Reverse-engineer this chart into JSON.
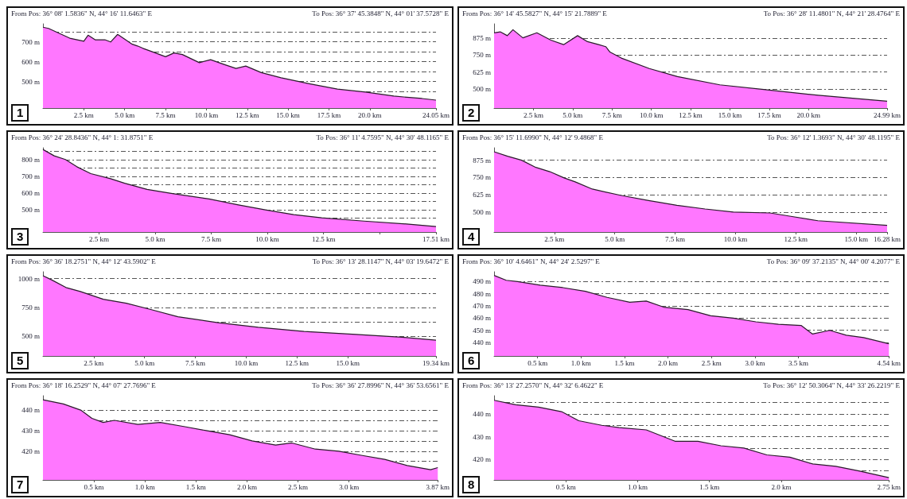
{
  "chart_data": [
    {
      "type": "area",
      "annotations": [
        "From Pos: 36° 08' 1.5836\" N, 44° 16' 11.6463\" E",
        "To Pos: 36° 37' 45.3848\" N, 44° 01' 37.5728\" E",
        "1"
      ],
      "x": [
        0,
        0.34,
        1.64,
        2.5,
        2.76,
        3.19,
        3.79,
        4.14,
        4.57,
        4.91,
        5.43,
        5.78,
        6.12,
        6.72,
        7.5,
        8.02,
        8.53,
        9.57,
        10.26,
        11.12,
        11.81,
        12.41,
        13.36,
        14.57,
        16.29,
        18.02,
        19.74,
        21.47,
        23.19,
        24.05
      ],
      "series": [
        {
          "color": "#ff77ff",
          "values": [
            773,
            767,
            718,
            703,
            733,
            710,
            710,
            699,
            737,
            718,
            689,
            679,
            667,
            649,
            625,
            644,
            636,
            595,
            610,
            585,
            566,
            578,
            545,
            519,
            489,
            462,
            447,
            427,
            415,
            407
          ]
        }
      ],
      "xlim": [
        0,
        24.05
      ],
      "xticks": [
        {
          "value": 2.5,
          "label": "2.5 km"
        },
        {
          "value": 5,
          "label": "5.0 km"
        },
        {
          "value": 7.5,
          "label": "7.5 km"
        },
        {
          "value": 10,
          "label": "10.0 km"
        },
        {
          "value": 12.5,
          "label": "12.5 km"
        },
        {
          "value": 15,
          "label": "15.0 km"
        },
        {
          "value": 17.5,
          "label": "17.5 km"
        },
        {
          "value": 20,
          "label": "20.0 km"
        },
        {
          "value": 24.05,
          "label": "24.05 km"
        }
      ],
      "ylim": [
        367,
        790
      ],
      "yticks": [
        {
          "value": 450,
          "label": null
        },
        {
          "value": 500,
          "label": "500 m"
        },
        {
          "value": 550,
          "label": null
        },
        {
          "value": 600,
          "label": "600 m"
        },
        {
          "value": 650,
          "label": null
        },
        {
          "value": 700,
          "label": "700 m"
        },
        {
          "value": 750,
          "label": null
        }
      ],
      "grid": "y"
    },
    {
      "type": "area",
      "annotations": [
        "From Pos: 36° 14' 45.5827\" N, 44° 15' 21.7889\" E",
        "To Pos: 36° 28' 11.4801\" N, 44° 21' 28.4764\" E",
        "2"
      ],
      "x": [
        0,
        0.39,
        0.84,
        1.2,
        1.83,
        2.72,
        3.61,
        4.42,
        5.31,
        5.94,
        6.65,
        7.1,
        7.37,
        8.09,
        9.87,
        11.66,
        14.35,
        17.03,
        20.61,
        24.99
      ],
      "series": [
        {
          "color": "#ff77ff",
          "values": [
            914,
            921,
            893,
            937,
            877,
            914,
            860,
            827,
            893,
            849,
            827,
            812,
            772,
            728,
            651,
            592,
            531,
            498,
            454,
            410
          ]
        }
      ],
      "xlim": [
        0,
        24.99
      ],
      "xticks": [
        {
          "value": 2.5,
          "label": "2.5 km"
        },
        {
          "value": 5,
          "label": "5.0 km"
        },
        {
          "value": 7.5,
          "label": "7.5 km"
        },
        {
          "value": 10,
          "label": "10.0 km"
        },
        {
          "value": 12.5,
          "label": "12.5 km"
        },
        {
          "value": 15,
          "label": "15.0 km"
        },
        {
          "value": 17.5,
          "label": "17.5 km"
        },
        {
          "value": 20,
          "label": "20.0 km"
        },
        {
          "value": 24.99,
          "label": "24.99 km"
        }
      ],
      "ylim": [
        360,
        980
      ],
      "yticks": [
        {
          "value": 500,
          "label": "500 m"
        },
        {
          "value": 625,
          "label": "625 m"
        },
        {
          "value": 750,
          "label": "750 m"
        },
        {
          "value": 875,
          "label": "875 m"
        }
      ],
      "grid": "y"
    },
    {
      "type": "area",
      "annotations": [
        "From Pos: 36° 24' 28.8436\" N, 44° 1: 31.8751\" E",
        "To Pos: 36° 11' 4.7595\" N, 44° 30' 48.1165\" E",
        "3"
      ],
      "x": [
        0,
        0.5,
        1.0,
        1.51,
        2.13,
        3.01,
        3.64,
        4.64,
        5.77,
        7.4,
        8.66,
        9.91,
        11.17,
        12.42,
        14.3,
        16.19,
        17.51
      ],
      "series": [
        {
          "color": "#ff77ff",
          "values": [
            860,
            822,
            800,
            757,
            716,
            686,
            659,
            622,
            597,
            565,
            531,
            500,
            472,
            453,
            433,
            416,
            401
          ]
        }
      ],
      "xlim": [
        0,
        17.51
      ],
      "xticks": [
        {
          "value": 2.5,
          "label": "2.5 km"
        },
        {
          "value": 5,
          "label": "5.0 km"
        },
        {
          "value": 7.5,
          "label": "7.5 km"
        },
        {
          "value": 10,
          "label": "10.0 km"
        },
        {
          "value": 12.5,
          "label": "12.5 km"
        },
        {
          "value": 15,
          "label": null
        },
        {
          "value": 17.51,
          "label": "17.51 km"
        }
      ],
      "ylim": [
        368,
        870
      ],
      "yticks": [
        {
          "value": 450,
          "label": null
        },
        {
          "value": 500,
          "label": "500 m"
        },
        {
          "value": 550,
          "label": null
        },
        {
          "value": 600,
          "label": "600 m"
        },
        {
          "value": 650,
          "label": null
        },
        {
          "value": 700,
          "label": "700 m"
        },
        {
          "value": 750,
          "label": null
        },
        {
          "value": 800,
          "label": "800 m"
        },
        {
          "value": 850,
          "label": null
        }
      ],
      "grid": "y"
    },
    {
      "type": "area",
      "annotations": [
        "From Pos: 36° 15' 11.6990\" N, 44° 12' 9.4868\" E",
        "To Pos: 36° 12' 1.3693\" N, 44° 30' 48.1195\" E",
        "4"
      ],
      "x": [
        0,
        0.56,
        1.14,
        1.73,
        2.31,
        2.9,
        3.36,
        4.07,
        5.23,
        6.4,
        7.57,
        8.74,
        9.91,
        11.43,
        12.24,
        13.41,
        16.28
      ],
      "series": [
        {
          "color": "#ff77ff",
          "values": [
            936,
            904,
            875,
            823,
            792,
            747,
            718,
            666,
            621,
            583,
            549,
            522,
            500,
            493,
            470,
            437,
            403
          ]
        }
      ],
      "xlim": [
        0,
        16.28
      ],
      "xticks": [
        {
          "value": 2.5,
          "label": "2.5 km"
        },
        {
          "value": 5,
          "label": "5.0 km"
        },
        {
          "value": 7.5,
          "label": "7.5 km"
        },
        {
          "value": 10,
          "label": "10.0 km"
        },
        {
          "value": 12.5,
          "label": "12.5 km"
        },
        {
          "value": 15,
          "label": "15.0 km"
        },
        {
          "value": 16.28,
          "label": "16.28 km"
        }
      ],
      "ylim": [
        355,
        965
      ],
      "yticks": [
        {
          "value": 500,
          "label": "500 m"
        },
        {
          "value": 625,
          "label": "625 m"
        },
        {
          "value": 750,
          "label": "750 m"
        },
        {
          "value": 875,
          "label": "875 m"
        }
      ],
      "grid": "y"
    },
    {
      "type": "area",
      "annotations": [
        "From Pos: 36° 36' 18.2751\" N, 44° 12' 43.5902\" E",
        "To Pos: 36° 13' 28.1147\" N, 44° 03' 19.6472\" E",
        "5"
      ],
      "x": [
        0,
        0.42,
        1.13,
        1.84,
        2.97,
        4.1,
        5.23,
        6.64,
        8.62,
        10.59,
        12.85,
        15.4,
        17.66,
        19.34
      ],
      "series": [
        {
          "color": "#ff77ff",
          "values": [
            1026,
            990,
            923,
            888,
            821,
            786,
            735,
            668,
            617,
            577,
            541,
            515,
            490,
            464
          ]
        }
      ],
      "xlim": [
        0,
        19.34
      ],
      "xticks": [
        {
          "value": 2.5,
          "label": "2.5 km"
        },
        {
          "value": 5,
          "label": "5.0 km"
        },
        {
          "value": 7.5,
          "label": "7.5 km"
        },
        {
          "value": 10,
          "label": "10.0 km"
        },
        {
          "value": 12.5,
          "label": "12.5 km"
        },
        {
          "value": 15,
          "label": "15.0 km"
        },
        {
          "value": 19.34,
          "label": "19.34 km"
        }
      ],
      "ylim": [
        327,
        1060
      ],
      "yticks": [
        {
          "value": 500,
          "label": "500 m"
        },
        {
          "value": 625,
          "label": null
        },
        {
          "value": 750,
          "label": "750 m"
        },
        {
          "value": 875,
          "label": null
        },
        {
          "value": 1000,
          "label": "1000 m"
        }
      ],
      "grid": "y"
    },
    {
      "type": "area",
      "annotations": [
        "From Pos: 36° 10' 4.6461\" N, 44° 24' 2.5297\" E",
        "To Pos: 36° 09' 37.2135\" N, 44° 00' 4.2077\" E",
        "6"
      ],
      "x": [
        0,
        0.14,
        0.27,
        0.53,
        0.79,
        1.05,
        1.3,
        1.56,
        1.75,
        1.95,
        2.23,
        2.49,
        2.75,
        3.01,
        3.27,
        3.53,
        3.66,
        3.86,
        4.05,
        4.25,
        4.54
      ],
      "series": [
        {
          "color": "#ff77ff",
          "values": [
            495,
            491,
            490,
            487,
            485,
            482,
            477,
            473,
            474,
            469,
            467,
            462,
            460,
            457,
            455,
            454,
            447,
            450,
            446,
            444,
            439
          ]
        }
      ],
      "xlim": [
        0,
        4.54
      ],
      "xticks": [
        {
          "value": 0.5,
          "label": "0.5 km"
        },
        {
          "value": 1,
          "label": "1.0 km"
        },
        {
          "value": 1.5,
          "label": "1.5 km"
        },
        {
          "value": 2,
          "label": "2.0 km"
        },
        {
          "value": 2.5,
          "label": "2.5 km"
        },
        {
          "value": 3,
          "label": "3.0 km"
        },
        {
          "value": 3.5,
          "label": "3.5 km"
        },
        {
          "value": 4.54,
          "label": "4.54 km"
        }
      ],
      "ylim": [
        429,
        498
      ],
      "yticks": [
        {
          "value": 440,
          "label": "440 m"
        },
        {
          "value": 450,
          "label": "450 m"
        },
        {
          "value": 460,
          "label": "460 m"
        },
        {
          "value": 470,
          "label": "470 m"
        },
        {
          "value": 480,
          "label": "480 m"
        },
        {
          "value": 490,
          "label": "490 m"
        }
      ],
      "grid": "y"
    },
    {
      "type": "area",
      "annotations": [
        "From Pos: 36° 18' 16.2529\" N, 44° 07' 27.7696\" E",
        "To Pos: 36° 36' 27.8996\" N, 44° 36' 53.6561\" E",
        "7"
      ],
      "x": [
        0,
        0.2,
        0.37,
        0.48,
        0.59,
        0.7,
        0.93,
        1.15,
        1.38,
        1.6,
        1.83,
        2.05,
        2.28,
        2.44,
        2.67,
        2.9,
        3.12,
        3.35,
        3.57,
        3.8,
        3.87
      ],
      "series": [
        {
          "color": "#ff77ff",
          "values": [
            445,
            443,
            440,
            436,
            434,
            435,
            433,
            434,
            432,
            430,
            428,
            425,
            423,
            424,
            421,
            420,
            418,
            416,
            413,
            411,
            412
          ]
        }
      ],
      "xlim": [
        0,
        3.87
      ],
      "xticks": [
        {
          "value": 0.5,
          "label": "0.5 km"
        },
        {
          "value": 1,
          "label": "1.0 km"
        },
        {
          "value": 1.5,
          "label": "1.5 km"
        },
        {
          "value": 2,
          "label": "2.0 km"
        },
        {
          "value": 2.5,
          "label": "2.5 km"
        },
        {
          "value": 3,
          "label": "3.0 km"
        },
        {
          "value": 3.87,
          "label": "3.87 km"
        }
      ],
      "ylim": [
        406,
        447
      ],
      "yticks": [
        {
          "value": 415,
          "label": null
        },
        {
          "value": 420,
          "label": "420 m"
        },
        {
          "value": 425,
          "label": null
        },
        {
          "value": 430,
          "label": "430 m"
        },
        {
          "value": 435,
          "label": null
        },
        {
          "value": 440,
          "label": "440 m"
        }
      ],
      "grid": "y"
    },
    {
      "type": "area",
      "annotations": [
        "From Pos: 36° 13' 27.2570\" N, 44° 32' 6.4622\" E",
        "To Pos: 36° 12' 50.3064\" N, 44° 33' 26.2219\" E",
        "8"
      ],
      "x": [
        0,
        0.15,
        0.31,
        0.47,
        0.59,
        0.75,
        0.87,
        1.06,
        1.26,
        1.42,
        1.58,
        1.74,
        1.9,
        2.06,
        2.22,
        2.38,
        2.54,
        2.75
      ],
      "series": [
        {
          "color": "#ff77ff",
          "values": [
            446,
            444,
            443,
            441,
            437,
            435,
            434,
            433,
            428,
            428,
            426,
            425,
            422,
            421,
            418,
            417,
            415,
            412
          ]
        }
      ],
      "xlim": [
        0,
        2.75
      ],
      "xticks": [
        {
          "value": 0.5,
          "label": "0.5 km"
        },
        {
          "value": 1,
          "label": "1.0 km"
        },
        {
          "value": 1.5,
          "label": "1.5 km"
        },
        {
          "value": 2,
          "label": "2.0 km"
        },
        {
          "value": 2.75,
          "label": "2.75 km"
        }
      ],
      "ylim": [
        411,
        448
      ],
      "yticks": [
        {
          "value": 415,
          "label": null
        },
        {
          "value": 420,
          "label": "420 m"
        },
        {
          "value": 425,
          "label": null
        },
        {
          "value": 430,
          "label": "430 m"
        },
        {
          "value": 435,
          "label": null
        },
        {
          "value": 440,
          "label": "440 m"
        },
        {
          "value": 445,
          "label": null
        }
      ],
      "grid": "y"
    }
  ]
}
